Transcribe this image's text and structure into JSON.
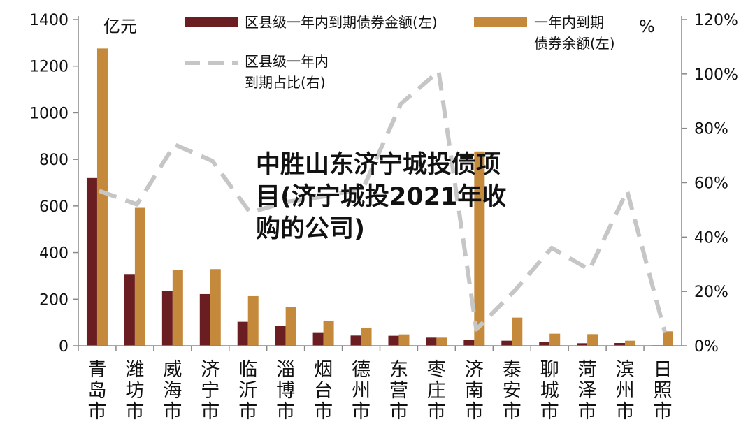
{
  "chart_data": {
    "type": "bar",
    "categories": [
      "青岛市",
      "潍坊市",
      "威海市",
      "济宁市",
      "临沂市",
      "淄博市",
      "烟台市",
      "德州市",
      "东营市",
      "枣庄市",
      "济南市",
      "泰安市",
      "聊城市",
      "菏泽市",
      "滨州市",
      "日照市"
    ],
    "left_unit": "亿元",
    "right_unit": "%",
    "y_left_ticks": [
      "0",
      "200",
      "400",
      "600",
      "800",
      "1000",
      "1200",
      "1400"
    ],
    "y_left_lim": [
      0,
      1400
    ],
    "y_right_ticks": [
      "0%",
      "20%",
      "40%",
      "60%",
      "80%",
      "100%",
      "120%"
    ],
    "y_right_lim": [
      0,
      120
    ],
    "series": [
      {
        "name": "区县级一年内到期债券金额(左)",
        "axis": "left",
        "kind": "bar",
        "color": "#6b1e22",
        "values": [
          720,
          308,
          236,
          222,
          103,
          86,
          58,
          44,
          43,
          35,
          24,
          22,
          15,
          11,
          12,
          2
        ]
      },
      {
        "name": "一年内到期债券余额(左)",
        "axis": "left",
        "kind": "bar",
        "color": "#c4893a",
        "values": [
          1276,
          592,
          324,
          329,
          213,
          166,
          108,
          78,
          49,
          35,
          834,
          121,
          52,
          50,
          22,
          62
        ]
      },
      {
        "name": "区县级一年内到期占比(右)",
        "axis": "right",
        "kind": "line",
        "style": "dashed",
        "color": "#c6c6c6",
        "values": [
          57,
          52,
          74,
          68,
          49,
          53,
          55,
          58,
          89,
          101,
          6,
          20,
          36,
          28,
          57,
          5
        ]
      }
    ],
    "overlay_text": "中胜山东济宁城投债项目(济宁城投2021年收购的公司)",
    "grid": false,
    "legend_position": "top"
  }
}
